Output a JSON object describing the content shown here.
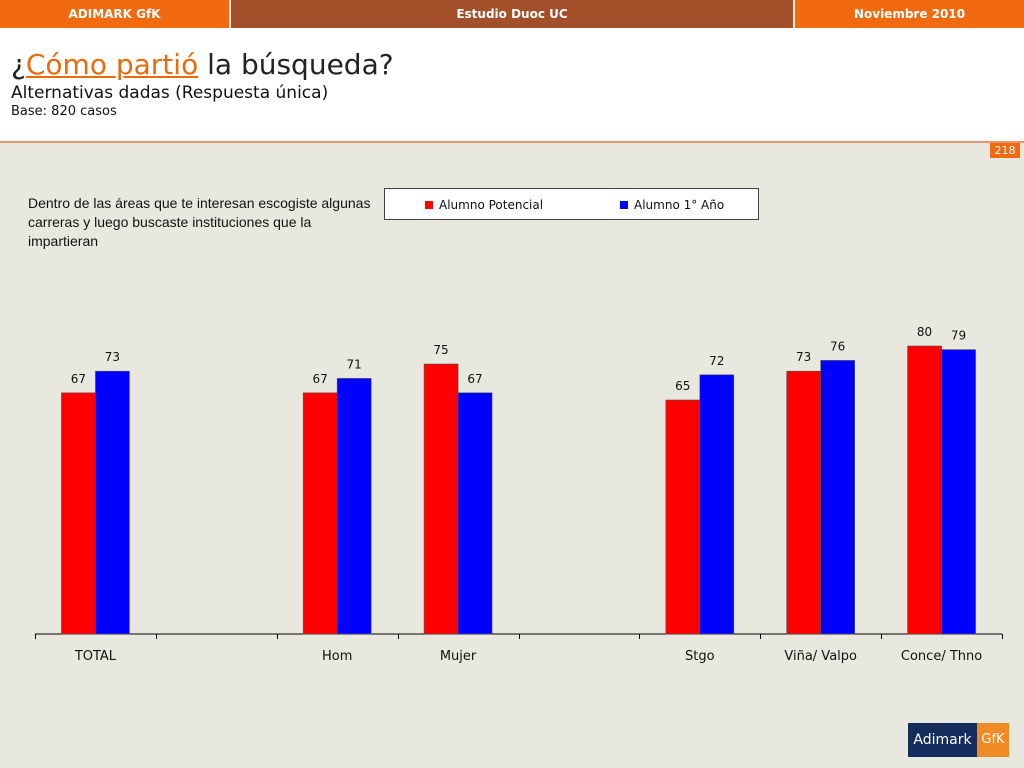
{
  "topbar": {
    "left": "ADIMARK GfK",
    "center": "Estudio Duoc UC",
    "right": "Noviembre 2010"
  },
  "header": {
    "title_pre": "¿",
    "title_highlight": "Cómo partió",
    "title_post": " la búsqueda?",
    "subtitle": "Alternativas dadas (Respuesta única)",
    "base": "Base: 820 casos"
  },
  "page_number": "218",
  "question": "Dentro de las áreas que te interesan escogiste algunas carreras y luego buscaste instituciones que la impartieran",
  "logo": {
    "part1": "Adimark",
    "part2": "GfK"
  },
  "colors": {
    "series1": "#ff0000",
    "series2": "#0000ff",
    "accent": "#f26a10"
  },
  "chart_data": {
    "type": "bar",
    "categories": [
      "TOTAL",
      "",
      "Hom",
      "Mujer",
      "",
      "Stgo",
      "Viña/ Valpo",
      "Conce/ Thno"
    ],
    "series": [
      {
        "name": "Alumno Potencial",
        "values": [
          67,
          null,
          67,
          75,
          null,
          65,
          73,
          80
        ]
      },
      {
        "name": "Alumno 1° Año",
        "values": [
          73,
          null,
          71,
          67,
          null,
          72,
          76,
          79
        ]
      }
    ],
    "ylim": [
      0,
      100
    ],
    "grid": false,
    "legend": "top"
  }
}
